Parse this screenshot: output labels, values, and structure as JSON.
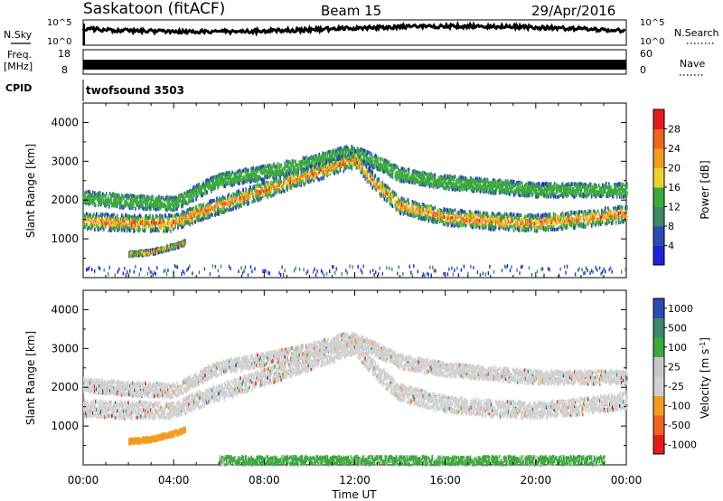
{
  "header": {
    "station": "Saskatoon (fitACF)",
    "beam": "Beam 15",
    "date": "29/Apr/2016"
  },
  "strips": {
    "nsky_label": "N.Sky",
    "nsearch_label": "N.Search",
    "nsky_ticks": [
      "10^5",
      "10^0"
    ],
    "nsearch_ticks": [
      "10^5",
      "10^0"
    ],
    "freq_label": "Freq.",
    "freq_unit": "[MHz]",
    "freq_ticks": [
      "18",
      "8"
    ],
    "nave_label": "Nave",
    "nave_ticks": [
      "60",
      "0"
    ],
    "cpid_label": "CPID",
    "cpid_value": "twofsound 3503"
  },
  "colors": {
    "power": [
      "#1e24d6",
      "#2a4db0",
      "#3a8a6a",
      "#3ca93c",
      "#e7d22a",
      "#f39c22",
      "#ef6420",
      "#e61d1d"
    ],
    "velocity": [
      "#e61d1d",
      "#ef6420",
      "#f39c22",
      "#d0d0d0",
      "#c8c8c8",
      "#3ca93c",
      "#3a8a6a",
      "#2a4db0"
    ]
  },
  "chart_data": [
    {
      "type": "heatmap",
      "quantity": "Power",
      "ylabel": "Slant Range [km]",
      "ylim": [
        0,
        4500
      ],
      "yticks": [
        "1000",
        "2000",
        "3000",
        "4000"
      ],
      "colorbar_label": "Power [dB]",
      "colorbar_ticks": [
        "4",
        "8",
        "12",
        "16",
        "20",
        "24",
        "28"
      ],
      "series": [
        {
          "name": "upper",
          "x": [
            0.0,
            2.0,
            4.0,
            5.0,
            6.0,
            8.0,
            10.0,
            11.5,
            12.0,
            13.0,
            14.0,
            16.0,
            18.0,
            20.0,
            22.0,
            24.0
          ],
          "y": [
            2100,
            2000,
            1950,
            2250,
            2550,
            2750,
            3000,
            3250,
            3250,
            3000,
            2700,
            2500,
            2400,
            2300,
            2300,
            2300
          ]
        },
        {
          "name": "middle",
          "x": [
            0.0,
            2.0,
            4.0,
            5.0,
            12.0,
            13.0,
            14.0,
            16.0,
            18.0,
            20.0,
            22.0,
            24.0
          ],
          "y": [
            1500,
            1450,
            1450,
            1700,
            3100,
            2400,
            1900,
            1600,
            1500,
            1450,
            1550,
            1700
          ]
        },
        {
          "name": "lower",
          "x": [
            2.0,
            3.0,
            4.0,
            4.5
          ],
          "y": [
            650,
            700,
            850,
            950
          ]
        }
      ]
    },
    {
      "type": "heatmap",
      "quantity": "Velocity",
      "xlabel": "Time UT",
      "ylabel": "Slant Range [km]",
      "ylim": [
        0,
        4500
      ],
      "yticks": [
        "1000",
        "2000",
        "3000",
        "4000"
      ],
      "xticks": [
        "00:00",
        "04:00",
        "08:00",
        "12:00",
        "16:00",
        "20:00",
        "00:00"
      ],
      "colorbar_label": "Velocity [m s^-1]",
      "colorbar_ticks": [
        "-1000",
        "-500",
        "-100",
        "-25",
        "25",
        "100",
        "500",
        "1000"
      ],
      "series": [
        {
          "name": "upper",
          "x": [
            0.0,
            2.0,
            4.0,
            5.0,
            6.0,
            8.0,
            10.0,
            11.5,
            12.0,
            13.0,
            14.0,
            16.0,
            18.0,
            20.0,
            22.0,
            24.0
          ],
          "y": [
            2100,
            2000,
            1950,
            2250,
            2550,
            2750,
            3000,
            3250,
            3250,
            3000,
            2700,
            2500,
            2400,
            2300,
            2300,
            2300
          ]
        },
        {
          "name": "middle",
          "x": [
            0.0,
            2.0,
            4.0,
            5.0,
            12.0,
            13.0,
            14.0,
            16.0,
            18.0,
            20.0,
            22.0,
            24.0
          ],
          "y": [
            1500,
            1450,
            1450,
            1700,
            3100,
            2400,
            1900,
            1600,
            1500,
            1450,
            1550,
            1700
          ]
        },
        {
          "name": "lower",
          "x": [
            2.0,
            3.0,
            4.0,
            4.5
          ],
          "y": [
            650,
            700,
            850,
            950
          ]
        },
        {
          "name": "ground",
          "x": [
            6.0,
            12.0,
            18.0,
            23.0
          ],
          "y": [
            150,
            150,
            150,
            150
          ]
        }
      ]
    }
  ]
}
